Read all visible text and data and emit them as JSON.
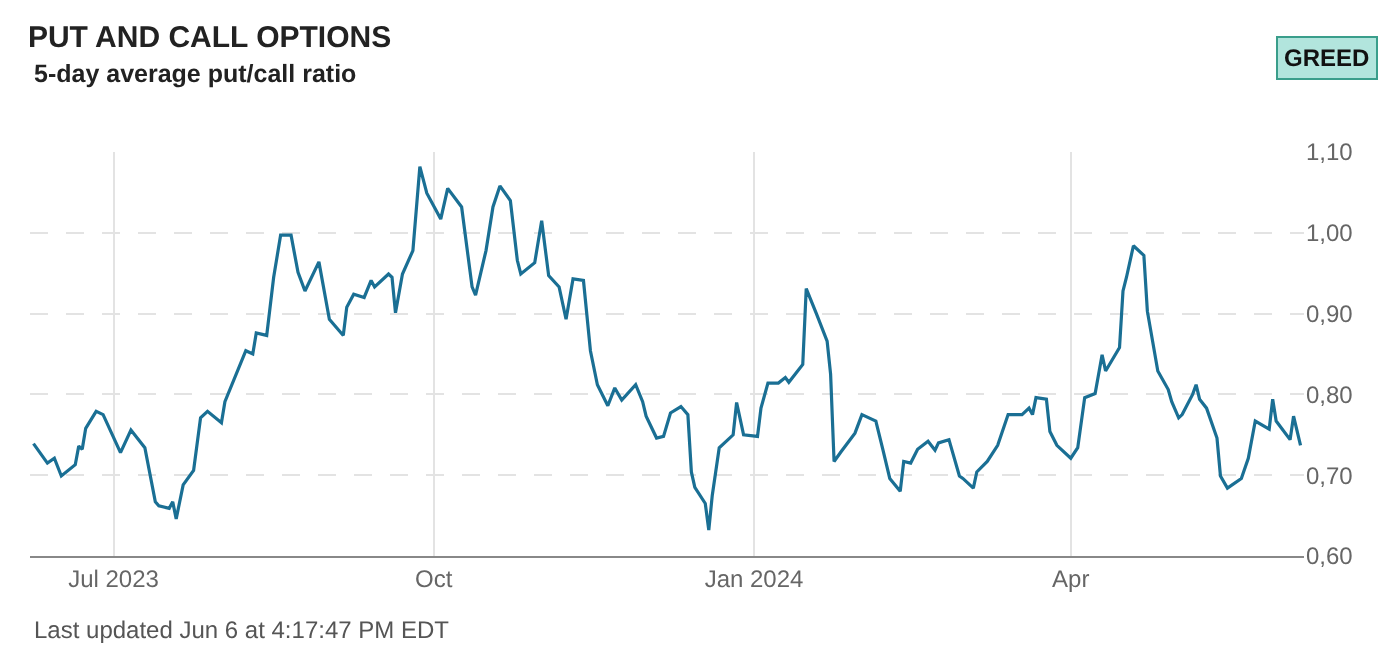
{
  "chart_data": {
    "type": "line",
    "title": "PUT AND CALL OPTIONS",
    "subtitle": "5-day average put/call ratio",
    "annotations": [
      "GREED",
      "Last updated Jun 6 at 4:17:47 PM EDT"
    ],
    "x": [
      "2023-06-08",
      "2023-06-12",
      "2023-06-14",
      "2023-06-16",
      "2023-06-20",
      "2023-06-21",
      "2023-06-22",
      "2023-06-23",
      "2023-06-26",
      "2023-06-28",
      "2023-07-03",
      "2023-07-06",
      "2023-07-10",
      "2023-07-13",
      "2023-07-14",
      "2023-07-17",
      "2023-07-18",
      "2023-07-19",
      "2023-07-21",
      "2023-07-24",
      "2023-07-26",
      "2023-07-28",
      "2023-08-01",
      "2023-08-02",
      "2023-08-08",
      "2023-08-10",
      "2023-08-11",
      "2023-08-14",
      "2023-08-16",
      "2023-08-18",
      "2023-08-21",
      "2023-08-23",
      "2023-08-25",
      "2023-08-29",
      "2023-09-01",
      "2023-09-05",
      "2023-09-06",
      "2023-09-08",
      "2023-09-11",
      "2023-09-13",
      "2023-09-14",
      "2023-09-18",
      "2023-09-19",
      "2023-09-20",
      "2023-09-22",
      "2023-09-25",
      "2023-09-27",
      "2023-09-29",
      "2023-10-03",
      "2023-10-05",
      "2023-10-09",
      "2023-10-12",
      "2023-10-13",
      "2023-10-16",
      "2023-10-18",
      "2023-10-20",
      "2023-10-23",
      "2023-10-25",
      "2023-10-26",
      "2023-10-30",
      "2023-11-01",
      "2023-11-03",
      "2023-11-06",
      "2023-11-08",
      "2023-11-10",
      "2023-11-13",
      "2023-11-15",
      "2023-11-17",
      "2023-11-20",
      "2023-11-22",
      "2023-11-24",
      "2023-11-28",
      "2023-11-30",
      "2023-12-01",
      "2023-12-04",
      "2023-12-06",
      "2023-12-08",
      "2023-12-11",
      "2023-12-13",
      "2023-12-14",
      "2023-12-15",
      "2023-12-18",
      "2023-12-19",
      "2023-12-20",
      "2023-12-22",
      "2023-12-26",
      "2023-12-27",
      "2023-12-29",
      "2024-01-02",
      "2024-01-03",
      "2024-01-05",
      "2024-01-08",
      "2024-01-10",
      "2024-01-11",
      "2024-01-15",
      "2024-01-16",
      "2024-01-19",
      "2024-01-22",
      "2024-01-23",
      "2024-01-24",
      "2024-01-26",
      "2024-01-30",
      "2024-02-01",
      "2024-02-05",
      "2024-02-07",
      "2024-02-09",
      "2024-02-12",
      "2024-02-13",
      "2024-02-15",
      "2024-02-17",
      "2024-02-20",
      "2024-02-22",
      "2024-02-23",
      "2024-02-26",
      "2024-02-29",
      "2024-03-01",
      "2024-03-04",
      "2024-03-05",
      "2024-03-08",
      "2024-03-11",
      "2024-03-14",
      "2024-03-18",
      "2024-03-20",
      "2024-03-21",
      "2024-03-22",
      "2024-03-25",
      "2024-03-26",
      "2024-03-28",
      "2024-04-01",
      "2024-04-03",
      "2024-04-05",
      "2024-04-08",
      "2024-04-10",
      "2024-04-11",
      "2024-04-15",
      "2024-04-16",
      "2024-04-17",
      "2024-04-19",
      "2024-04-22",
      "2024-04-23",
      "2024-04-26",
      "2024-04-29",
      "2024-04-30",
      "2024-05-02",
      "2024-05-03",
      "2024-05-06",
      "2024-05-07",
      "2024-05-08",
      "2024-05-10",
      "2024-05-13",
      "2024-05-14",
      "2024-05-16",
      "2024-05-20",
      "2024-05-22",
      "2024-05-24",
      "2024-05-28",
      "2024-05-29",
      "2024-05-30",
      "2024-06-03",
      "2024-06-04",
      "2024-06-06"
    ],
    "series": [
      {
        "color": "#1a6f94",
        "values": [
          0.739,
          0.715,
          0.721,
          0.699,
          0.713,
          0.736,
          0.732,
          0.758,
          0.779,
          0.775,
          0.728,
          0.756,
          0.734,
          0.667,
          0.662,
          0.659,
          0.667,
          0.646,
          0.688,
          0.706,
          0.771,
          0.779,
          0.765,
          0.791,
          0.854,
          0.85,
          0.876,
          0.873,
          0.945,
          0.997,
          0.997,
          0.951,
          0.928,
          0.964,
          0.893,
          0.873,
          0.908,
          0.924,
          0.92,
          0.941,
          0.933,
          0.949,
          0.945,
          0.901,
          0.949,
          0.978,
          1.082,
          1.049,
          1.017,
          1.055,
          1.032,
          0.933,
          0.923,
          0.978,
          1.032,
          1.058,
          1.04,
          0.966,
          0.949,
          0.963,
          1.015,
          0.947,
          0.933,
          0.893,
          0.943,
          0.941,
          0.854,
          0.812,
          0.786,
          0.808,
          0.793,
          0.812,
          0.791,
          0.773,
          0.746,
          0.748,
          0.777,
          0.785,
          0.775,
          0.704,
          0.685,
          0.665,
          0.632,
          0.675,
          0.734,
          0.75,
          0.79,
          0.75,
          0.748,
          0.783,
          0.814,
          0.814,
          0.821,
          0.815,
          0.837,
          0.931,
          0.899,
          0.866,
          0.825,
          0.717,
          0.729,
          0.752,
          0.775,
          0.767,
          0.732,
          0.696,
          0.68,
          0.717,
          0.715,
          0.732,
          0.742,
          0.731,
          0.74,
          0.744,
          0.699,
          0.696,
          0.684,
          0.704,
          0.717,
          0.737,
          0.775,
          0.775,
          0.783,
          0.775,
          0.796,
          0.794,
          0.754,
          0.737,
          0.721,
          0.734,
          0.796,
          0.801,
          0.849,
          0.829,
          0.858,
          0.928,
          0.945,
          0.984,
          0.972,
          0.903,
          0.829,
          0.806,
          0.791,
          0.771,
          0.775,
          0.8,
          0.812,
          0.794,
          0.783,
          0.746,
          0.699,
          0.684,
          0.696,
          0.721,
          0.767,
          0.757,
          0.794,
          0.767,
          0.744,
          0.773,
          0.737
        ]
      }
    ],
    "xlim": [
      "2023-06-07",
      "2024-06-07"
    ],
    "xticks": [
      {
        "value": "2023-07-01",
        "label": "Jul 2023"
      },
      {
        "value": "2023-10-01",
        "label": "Oct"
      },
      {
        "value": "2024-01-01",
        "label": "Jan 2024"
      },
      {
        "value": "2024-04-01",
        "label": "Apr"
      }
    ],
    "ylim": [
      0.6,
      1.1
    ],
    "yticks": [
      {
        "value": 0.6,
        "label": "0,60"
      },
      {
        "value": 0.7,
        "label": "0,70"
      },
      {
        "value": 0.8,
        "label": "0,80"
      },
      {
        "value": 0.9,
        "label": "0,90"
      },
      {
        "value": 1.0,
        "label": "1,00"
      },
      {
        "value": 1.1,
        "label": "1,10"
      }
    ],
    "grid": true,
    "marker": "none",
    "line_style": "solid"
  }
}
